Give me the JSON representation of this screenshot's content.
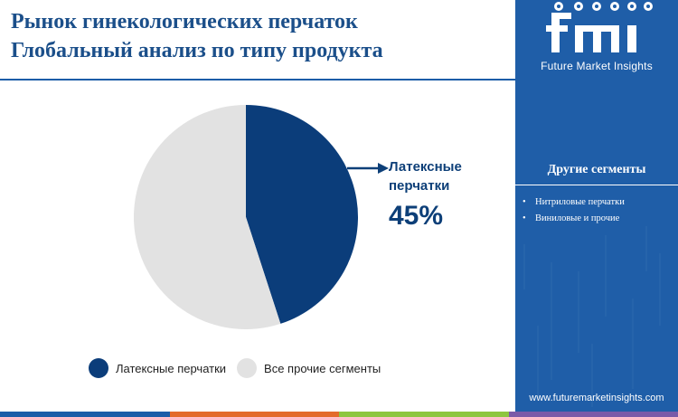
{
  "title": {
    "line1": "Рынок гинекологических перчаток",
    "line2": "Глобальный анализ по типу продукта"
  },
  "colors": {
    "title": "#1b4f8a",
    "latex": "#0b3d7a",
    "others": "#e2e2e2",
    "panel": "#1f5ea8",
    "bottom_bar": [
      "#1b5da8",
      "#e36b2b",
      "#8dc63f",
      "#7a5aa8"
    ]
  },
  "chart_data": {
    "type": "pie",
    "slices": [
      {
        "label": "Латексные перчатки",
        "value": 45,
        "color": "#0b3d7a"
      },
      {
        "label": "Все прочие сегменты",
        "value": 55,
        "color": "#e2e2e2"
      }
    ],
    "callout": {
      "label": "Латексные перчатки",
      "value": "45%"
    },
    "legend_position": "bottom"
  },
  "legend": {
    "items": [
      {
        "label": "Латексные перчатки",
        "color": "#0b3d7a"
      },
      {
        "label": "Все прочие сегменты",
        "color": "#e2e2e2"
      }
    ]
  },
  "side_panel": {
    "logo_text": "fmi",
    "tagline": "Future Market Insights",
    "other_segments_title": "Другие сегменты",
    "other_segments": [
      "Нитриловые перчатки",
      "Виниловые и прочие"
    ],
    "website": "www.futuremarketinsights.com"
  }
}
